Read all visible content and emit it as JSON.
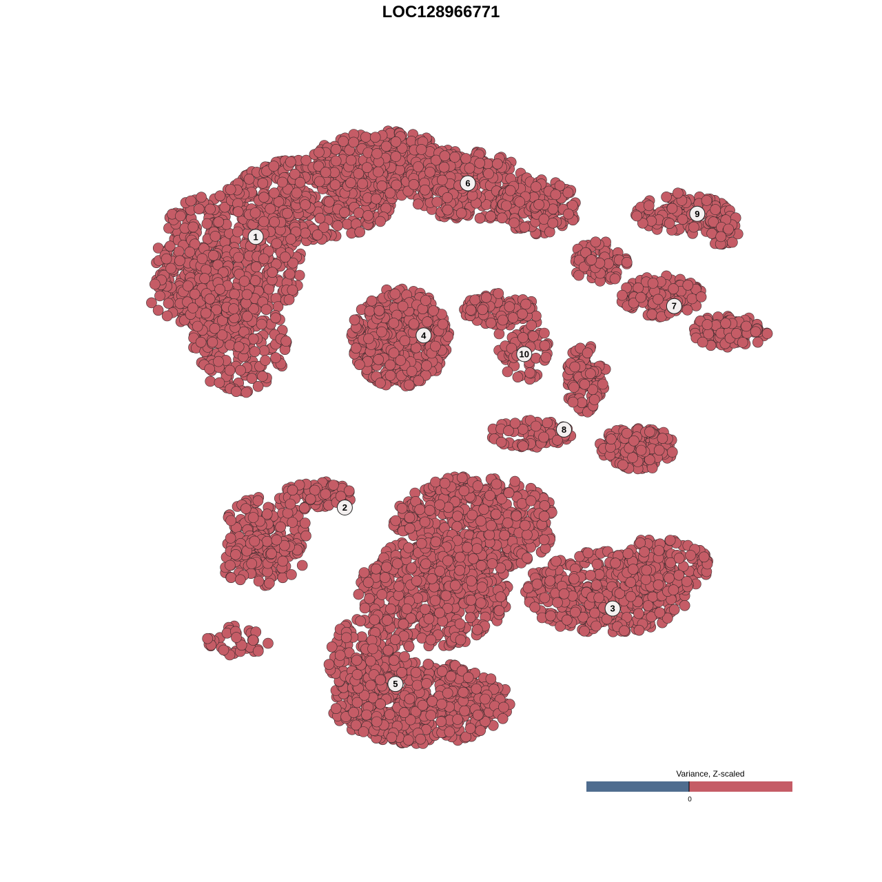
{
  "chart_data": {
    "type": "scatter",
    "title": "LOC128966771",
    "xlabel": "",
    "ylabel": "",
    "axes_visible": false,
    "grid": false,
    "xlim": [
      -50,
      50
    ],
    "ylim": [
      -50,
      50
    ],
    "point_color": "#c55c66",
    "point_edge_color": "#3a2a2c",
    "clusters": [
      {
        "label": "1",
        "x": -31.6,
        "y": 32.4
      },
      {
        "label": "2",
        "x": -17.7,
        "y": -11.0
      },
      {
        "label": "3",
        "x": 24.1,
        "y": -27.2
      },
      {
        "label": "4",
        "x": -5.4,
        "y": 16.6
      },
      {
        "label": "5",
        "x": -9.8,
        "y": -39.3
      },
      {
        "label": "6",
        "x": 1.5,
        "y": 41.0
      },
      {
        "label": "7",
        "x": 33.7,
        "y": 21.3
      },
      {
        "label": "8",
        "x": 16.5,
        "y": 1.5
      },
      {
        "label": "9",
        "x": 37.3,
        "y": 36.1
      },
      {
        "label": "10",
        "x": 10.3,
        "y": 13.6
      }
    ],
    "legend": {
      "title": "Variance, Z-scaled",
      "placement": "bottom-right",
      "tick_label": "0",
      "low_color": "#4f6d8f",
      "high_color": "#c55c66"
    }
  }
}
